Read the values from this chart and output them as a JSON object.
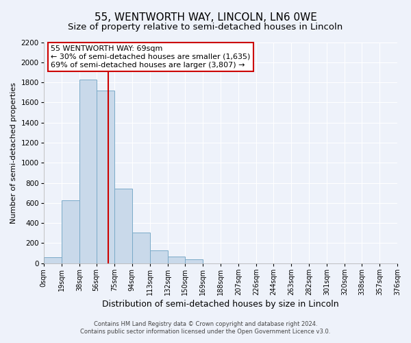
{
  "title": "55, WENTWORTH WAY, LINCOLN, LN6 0WE",
  "subtitle": "Size of property relative to semi-detached houses in Lincoln",
  "xlabel": "Distribution of semi-detached houses by size in Lincoln",
  "ylabel": "Number of semi-detached properties",
  "bar_color": "#c9d9ea",
  "bar_edge_color": "#7aaac8",
  "background_color": "#eef2fa",
  "plot_bg_color": "#eef2fa",
  "grid_color": "#ffffff",
  "annotation_box_color": "#ffffff",
  "annotation_border_color": "#cc0000",
  "property_line_color": "#cc0000",
  "property_value": 69,
  "annotation_title": "55 WENTWORTH WAY: 69sqm",
  "annotation_line1": "← 30% of semi-detached houses are smaller (1,635)",
  "annotation_line2": "69% of semi-detached houses are larger (3,807) →",
  "footnote1": "Contains HM Land Registry data © Crown copyright and database right 2024.",
  "footnote2": "Contains public sector information licensed under the Open Government Licence v3.0.",
  "bin_edges": [
    0,
    19,
    38,
    56,
    75,
    94,
    113,
    132,
    150,
    169,
    188,
    207,
    226,
    244,
    263,
    282,
    301,
    320,
    338,
    357,
    376
  ],
  "bin_counts": [
    60,
    625,
    1830,
    1720,
    740,
    305,
    130,
    65,
    40,
    0,
    0,
    0,
    0,
    0,
    0,
    0,
    0,
    0,
    0,
    0
  ],
  "tick_labels": [
    "0sqm",
    "19sqm",
    "38sqm",
    "56sqm",
    "75sqm",
    "94sqm",
    "113sqm",
    "132sqm",
    "150sqm",
    "169sqm",
    "188sqm",
    "207sqm",
    "226sqm",
    "244sqm",
    "263sqm",
    "282sqm",
    "301sqm",
    "320sqm",
    "338sqm",
    "357sqm",
    "376sqm"
  ],
  "ylim": [
    0,
    2200
  ],
  "yticks": [
    0,
    200,
    400,
    600,
    800,
    1000,
    1200,
    1400,
    1600,
    1800,
    2000,
    2200
  ],
  "title_fontsize": 11,
  "subtitle_fontsize": 9.5,
  "xlabel_fontsize": 9,
  "ylabel_fontsize": 8,
  "tick_fontsize": 7,
  "annotation_fontsize": 8,
  "footnote_fontsize": 6
}
